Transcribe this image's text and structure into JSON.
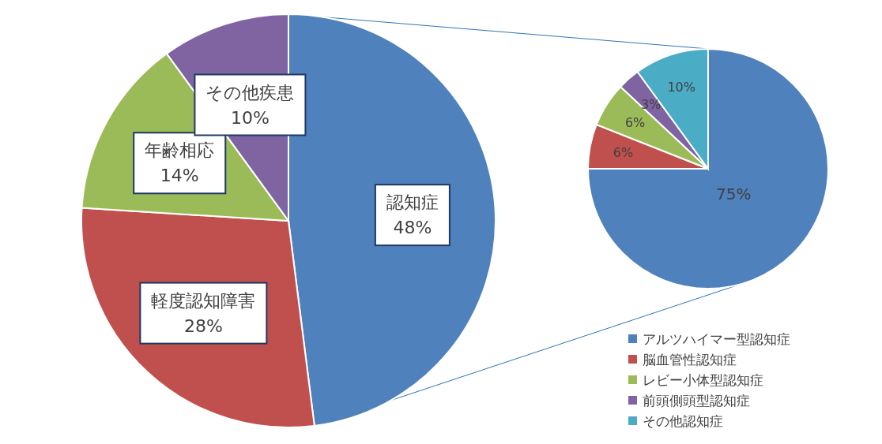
{
  "chart_data": [
    {
      "type": "pie",
      "categories": [
        "認知症",
        "軽度認知障害",
        "年齢相応",
        "その他疾患"
      ],
      "values": [
        48,
        28,
        14,
        10
      ],
      "value_labels": [
        "48%",
        "28%",
        "14%",
        "10%"
      ],
      "colors": [
        "#4f81bd",
        "#c0504d",
        "#9bbb59",
        "#8064a2"
      ],
      "legend": false
    },
    {
      "type": "pie",
      "categories": [
        "アルツハイマー型認知症",
        "脳血管性認知症",
        "レビー小体型認知症",
        "前頭側頭型認知症",
        "その他認知症"
      ],
      "values": [
        75,
        6,
        6,
        3,
        10
      ],
      "value_labels": [
        "75%",
        "6%",
        "6%",
        "3%",
        "10%"
      ],
      "colors": [
        "#4f81bd",
        "#c0504d",
        "#9bbb59",
        "#8064a2",
        "#4bacc6"
      ],
      "legend": "bottom right"
    }
  ]
}
